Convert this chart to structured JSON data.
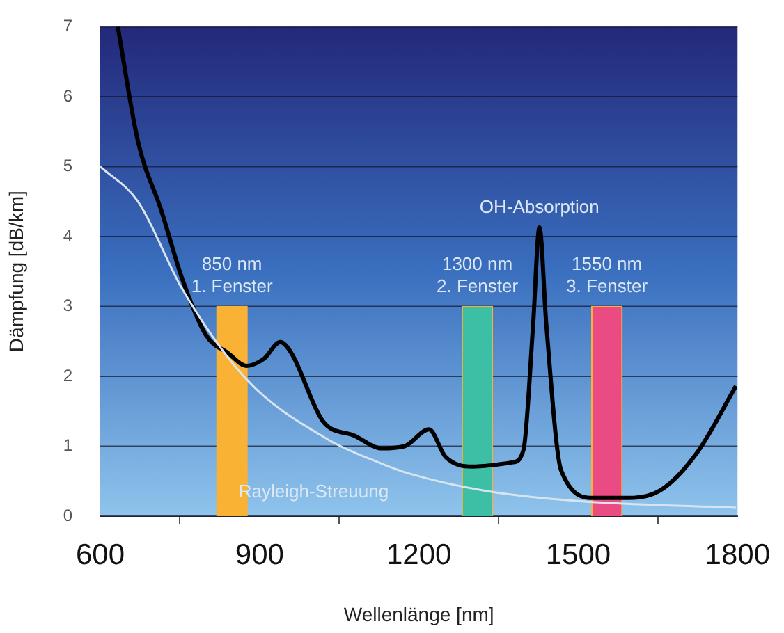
{
  "chart_data": {
    "type": "line",
    "xlabel": "Wellenlänge [nm]",
    "ylabel": "Dämpfung [dB/km]",
    "xlim": [
      600,
      1800
    ],
    "xticks": [
      600,
      900,
      1200,
      1500,
      1800
    ],
    "ylim": [
      0,
      7
    ],
    "yticks": [
      0,
      1,
      2,
      3,
      4,
      5,
      6,
      7
    ],
    "grid": "y",
    "legend": false,
    "marker": "none",
    "line_style": "solid",
    "series": [
      {
        "type": "bar",
        "color": "#f9b233",
        "colors": [
          "#f9b233",
          "#3dbfa6",
          "#ea4b82"
        ],
        "x": [
          848,
          1310,
          1554
        ],
        "values": [
          3,
          3,
          3
        ]
      },
      {
        "type": "line",
        "name": "Rayleigh-Streuung",
        "color": "#d8e4f0",
        "x": [
          600,
          671,
          755,
          875,
          1028,
          1130,
          1181,
          1326,
          1494,
          1797
        ],
        "values": [
          5,
          4.5,
          3.24,
          1.96,
          1.1,
          0.75,
          0.61,
          0.36,
          0.22,
          0.12
        ]
      },
      {
        "color": "#000000",
        "x": [
          633,
          671,
          715,
          755,
          799,
          841,
          875,
          908,
          939,
          960,
          1019,
          1079,
          1130,
          1173,
          1219,
          1250,
          1301,
          1377,
          1397,
          1415,
          1427,
          1440,
          1468,
          1530,
          1596,
          1657,
          1724,
          1797
        ],
        "values": [
          7,
          5.36,
          4.37,
          3.38,
          2.59,
          2.33,
          2.15,
          2.25,
          2.49,
          2.33,
          1.36,
          1.15,
          0.97,
          1.0,
          1.24,
          0.85,
          0.71,
          0.77,
          0.95,
          2.73,
          4.13,
          2.73,
          0.65,
          0.26,
          0.26,
          0.38,
          0.91,
          1.86
        ]
      }
    ],
    "annotations": [
      {
        "text": "850 nm\n1. Fenster",
        "x": 848,
        "y": 3
      },
      {
        "text": "1300 nm\n2. Fenster",
        "x": 1310,
        "y": 3
      },
      {
        "text": "1550 nm\n3. Fenster",
        "x": 1554,
        "y": 3
      },
      {
        "text": "OH-Absorption",
        "x": 1427,
        "y": 4.13
      }
    ]
  }
}
